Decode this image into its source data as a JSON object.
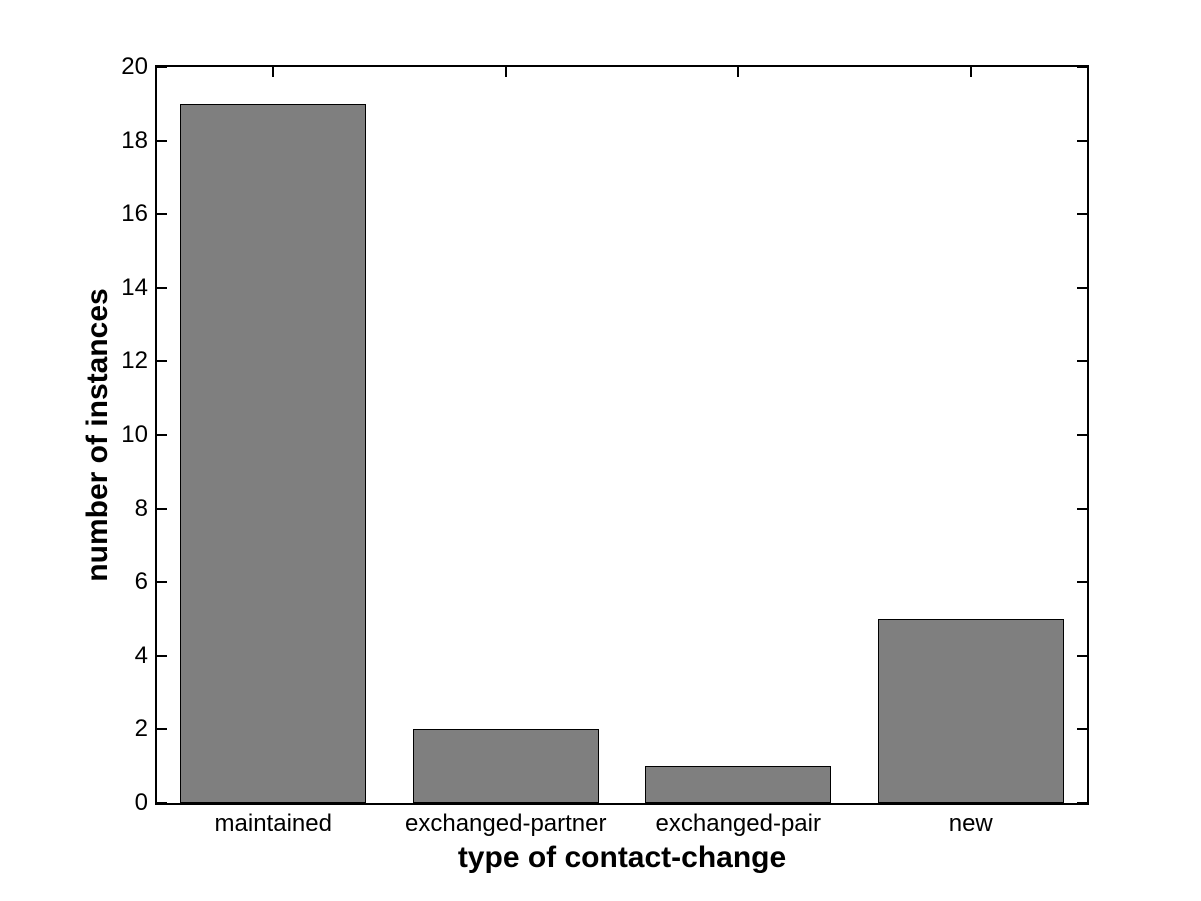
{
  "chart_data": {
    "type": "bar",
    "title": "",
    "categories": [
      "maintained",
      "exchanged-partner",
      "exchanged-pair",
      "new"
    ],
    "values": [
      19,
      2,
      1,
      5
    ],
    "xlabel": "type of contact-change",
    "ylabel": "number of instances",
    "ylim": [
      0,
      20
    ],
    "yticks": [
      0,
      2,
      4,
      6,
      8,
      10,
      12,
      14,
      16,
      18,
      20
    ],
    "bar_width_fraction": 0.8,
    "grid": false,
    "legend": null,
    "colors": {
      "bar_fill": "#7f7f7f",
      "bar_edge": "#000000",
      "axis": "#000000",
      "background": "#ffffff",
      "text": "#000000"
    }
  }
}
